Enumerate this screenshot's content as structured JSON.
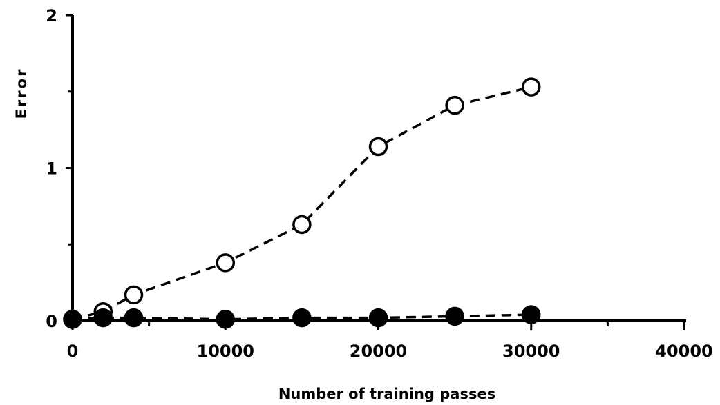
{
  "chart_data": {
    "type": "line",
    "xlabel": "Number of training passes",
    "ylabel": "Error",
    "xlim": [
      0,
      40000
    ],
    "ylim": [
      0,
      2
    ],
    "x_ticks": [
      "0",
      "10000",
      "20000",
      "30000",
      "40000"
    ],
    "y_ticks": [
      "0",
      "1",
      "2"
    ],
    "grid": false,
    "series": [
      {
        "marker": "open-circle",
        "line": "dashed",
        "color": "#000000",
        "points": [
          {
            "x": 0,
            "y": 0.01
          },
          {
            "x": 2000,
            "y": 0.06
          },
          {
            "x": 4000,
            "y": 0.17
          },
          {
            "x": 10000,
            "y": 0.38
          },
          {
            "x": 15000,
            "y": 0.63
          },
          {
            "x": 20000,
            "y": 1.14
          },
          {
            "x": 25000,
            "y": 1.41
          },
          {
            "x": 30000,
            "y": 1.53
          }
        ]
      },
      {
        "marker": "filled-circle",
        "line": "dashed",
        "color": "#000000",
        "points": [
          {
            "x": 0,
            "y": 0.01
          },
          {
            "x": 2000,
            "y": 0.02
          },
          {
            "x": 4000,
            "y": 0.02
          },
          {
            "x": 10000,
            "y": 0.01
          },
          {
            "x": 15000,
            "y": 0.02
          },
          {
            "x": 20000,
            "y": 0.02
          },
          {
            "x": 25000,
            "y": 0.03
          },
          {
            "x": 30000,
            "y": 0.04
          }
        ]
      }
    ]
  }
}
